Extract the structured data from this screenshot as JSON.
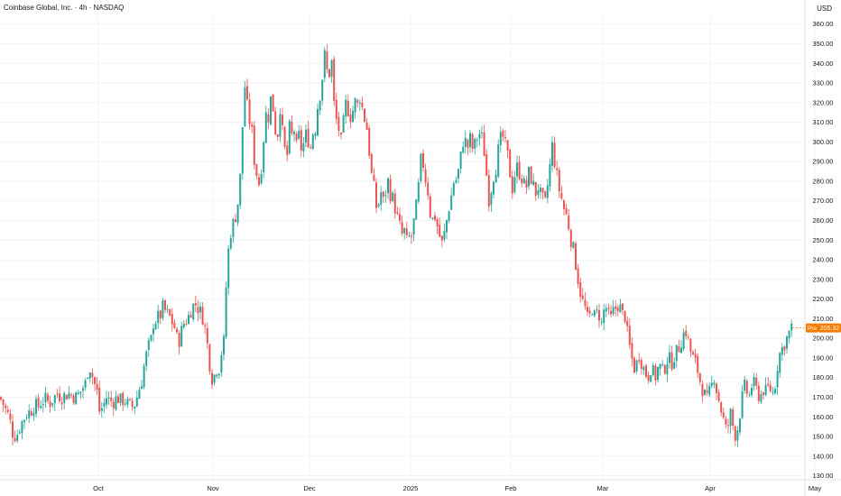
{
  "title": "Coinbase Global, Inc. · 4h · NASDAQ",
  "currency": "USD",
  "price_tag": {
    "label": "Pre",
    "value": "205.32"
  },
  "colors": {
    "up": "#26a69a",
    "down": "#ef5350",
    "grid": "#f0f3fa",
    "price_tag": "#f57c00"
  },
  "chart_data": {
    "type": "candlestick",
    "y_unit": "USD",
    "ylim": [
      128,
      364
    ],
    "y_ticks": [
      "130.00",
      "140.00",
      "150.00",
      "160.00",
      "170.00",
      "180.00",
      "190.00",
      "200.00",
      "210.00",
      "220.00",
      "230.00",
      "240.00",
      "250.00",
      "260.00",
      "270.00",
      "280.00",
      "290.00",
      "300.00",
      "310.00",
      "320.00",
      "330.00",
      "340.00",
      "350.00",
      "360.00"
    ],
    "x_ticks": [
      "Oct",
      "Nov",
      "Dec",
      "2025",
      "Feb",
      "Mar",
      "Apr",
      "May"
    ],
    "grid": true,
    "close_path": [
      [
        0,
        170
      ],
      [
        2,
        168
      ],
      [
        5,
        165
      ],
      [
        10,
        160
      ],
      [
        14,
        152
      ],
      [
        18,
        150
      ],
      [
        22,
        155
      ],
      [
        25,
        158
      ],
      [
        30,
        162
      ],
      [
        34,
        163
      ],
      [
        38,
        166
      ],
      [
        42,
        165
      ],
      [
        46,
        168
      ],
      [
        50,
        169
      ],
      [
        55,
        167
      ],
      [
        60,
        170
      ],
      [
        64,
        172
      ],
      [
        68,
        170
      ],
      [
        72,
        171
      ],
      [
        76,
        172
      ],
      [
        80,
        171
      ],
      [
        84,
        170
      ],
      [
        88,
        172
      ],
      [
        92,
        175
      ],
      [
        96,
        178
      ],
      [
        98,
        187
      ],
      [
        100,
        185
      ],
      [
        104,
        178
      ],
      [
        108,
        172
      ],
      [
        110,
        163
      ],
      [
        114,
        165
      ],
      [
        118,
        170
      ],
      [
        122,
        168
      ],
      [
        126,
        168
      ],
      [
        130,
        170
      ],
      [
        134,
        168
      ],
      [
        138,
        169
      ],
      [
        142,
        166
      ],
      [
        146,
        165
      ],
      [
        150,
        167
      ],
      [
        154,
        174
      ],
      [
        158,
        180
      ],
      [
        160,
        187
      ],
      [
        164,
        195
      ],
      [
        168,
        200
      ],
      [
        170,
        208
      ],
      [
        174,
        210
      ],
      [
        178,
        212
      ],
      [
        182,
        218
      ],
      [
        184,
        210
      ],
      [
        186,
        213
      ],
      [
        190,
        209
      ],
      [
        194,
        205
      ],
      [
        196,
        200
      ],
      [
        198,
        198
      ],
      [
        200,
        202
      ],
      [
        204,
        208
      ],
      [
        208,
        210
      ],
      [
        212,
        215
      ],
      [
        216,
        218
      ],
      [
        220,
        215
      ],
      [
        224,
        212
      ],
      [
        226,
        208
      ],
      [
        228,
        203
      ],
      [
        230,
        196
      ],
      [
        232,
        188
      ],
      [
        234,
        182
      ],
      [
        236,
        178
      ],
      [
        238,
        182
      ],
      [
        240,
        185
      ],
      [
        242,
        183
      ],
      [
        244,
        188
      ],
      [
        246,
        195
      ],
      [
        248,
        198
      ],
      [
        250,
        220
      ],
      [
        252,
        240
      ],
      [
        254,
        248
      ],
      [
        256,
        255
      ],
      [
        258,
        258
      ],
      [
        260,
        260
      ],
      [
        262,
        265
      ],
      [
        264,
        270
      ],
      [
        266,
        280
      ],
      [
        268,
        300
      ],
      [
        270,
        320
      ],
      [
        272,
        332
      ],
      [
        274,
        318
      ],
      [
        276,
        310
      ],
      [
        278,
        312
      ],
      [
        280,
        300
      ],
      [
        282,
        290
      ],
      [
        284,
        285
      ],
      [
        286,
        280
      ],
      [
        288,
        278
      ],
      [
        290,
        290
      ],
      [
        292,
        300
      ],
      [
        294,
        318
      ],
      [
        296,
        308
      ],
      [
        298,
        315
      ],
      [
        300,
        322
      ],
      [
        302,
        318
      ],
      [
        304,
        315
      ],
      [
        306,
        300
      ],
      [
        308,
        305
      ],
      [
        310,
        320
      ],
      [
        312,
        310
      ],
      [
        314,
        300
      ],
      [
        316,
        295
      ],
      [
        318,
        292
      ],
      [
        320,
        305
      ],
      [
        322,
        310
      ],
      [
        324,
        300
      ],
      [
        326,
        306
      ],
      [
        328,
        296
      ],
      [
        330,
        300
      ],
      [
        332,
        305
      ],
      [
        334,
        296
      ],
      [
        336,
        298
      ],
      [
        338,
        302
      ],
      [
        340,
        305
      ],
      [
        342,
        300
      ],
      [
        344,
        296
      ],
      [
        346,
        308
      ],
      [
        348,
        300
      ],
      [
        350,
        310
      ],
      [
        352,
        318
      ],
      [
        354,
        322
      ],
      [
        356,
        330
      ],
      [
        358,
        335
      ],
      [
        360,
        345
      ],
      [
        362,
        338
      ],
      [
        364,
        328
      ],
      [
        366,
        342
      ],
      [
        368,
        340
      ],
      [
        370,
        320
      ],
      [
        372,
        312
      ],
      [
        374,
        310
      ],
      [
        376,
        305
      ],
      [
        378,
        300
      ],
      [
        380,
        306
      ],
      [
        382,
        318
      ],
      [
        384,
        320
      ],
      [
        386,
        316
      ],
      [
        388,
        312
      ],
      [
        390,
        318
      ],
      [
        392,
        314
      ],
      [
        394,
        322
      ],
      [
        396,
        318
      ],
      [
        398,
        325
      ],
      [
        400,
        320
      ],
      [
        402,
        316
      ],
      [
        404,
        312
      ],
      [
        406,
        310
      ],
      [
        408,
        300
      ],
      [
        410,
        292
      ],
      [
        412,
        282
      ],
      [
        414,
        278
      ],
      [
        416,
        270
      ],
      [
        418,
        264
      ],
      [
        420,
        270
      ],
      [
        422,
        275
      ],
      [
        424,
        268
      ],
      [
        426,
        272
      ],
      [
        428,
        276
      ],
      [
        430,
        280
      ],
      [
        432,
        275
      ],
      [
        434,
        270
      ],
      [
        436,
        272
      ],
      [
        438,
        266
      ],
      [
        440,
        262
      ],
      [
        442,
        258
      ],
      [
        444,
        256
      ],
      [
        446,
        252
      ],
      [
        448,
        255
      ],
      [
        450,
        250
      ],
      [
        452,
        248
      ],
      [
        454,
        253
      ],
      [
        456,
        252
      ],
      [
        458,
        258
      ],
      [
        460,
        262
      ],
      [
        462,
        270
      ],
      [
        464,
        278
      ],
      [
        466,
        290
      ],
      [
        468,
        292
      ],
      [
        470,
        285
      ],
      [
        472,
        280
      ],
      [
        474,
        276
      ],
      [
        476,
        265
      ],
      [
        478,
        262
      ],
      [
        480,
        260
      ],
      [
        482,
        262
      ],
      [
        484,
        258
      ],
      [
        486,
        255
      ],
      [
        488,
        250
      ],
      [
        490,
        248
      ],
      [
        492,
        252
      ],
      [
        494,
        258
      ],
      [
        496,
        262
      ],
      [
        498,
        268
      ],
      [
        500,
        272
      ],
      [
        502,
        278
      ],
      [
        504,
        282
      ],
      [
        506,
        280
      ],
      [
        508,
        285
      ],
      [
        510,
        290
      ],
      [
        512,
        298
      ],
      [
        514,
        302
      ],
      [
        516,
        300
      ],
      [
        518,
        296
      ],
      [
        520,
        303
      ],
      [
        522,
        300
      ],
      [
        524,
        296
      ],
      [
        526,
        298
      ],
      [
        528,
        304
      ],
      [
        530,
        300
      ],
      [
        532,
        306
      ],
      [
        534,
        302
      ],
      [
        536,
        298
      ],
      [
        538,
        288
      ],
      [
        540,
        280
      ],
      [
        542,
        270
      ],
      [
        544,
        275
      ],
      [
        546,
        282
      ],
      [
        548,
        284
      ],
      [
        550,
        288
      ],
      [
        552,
        295
      ],
      [
        554,
        300
      ],
      [
        556,
        303
      ],
      [
        558,
        302
      ],
      [
        560,
        298
      ],
      [
        562,
        294
      ],
      [
        564,
        290
      ],
      [
        566,
        280
      ],
      [
        568,
        276
      ],
      [
        570,
        282
      ],
      [
        572,
        288
      ],
      [
        574,
        286
      ],
      [
        576,
        284
      ],
      [
        578,
        282
      ],
      [
        580,
        280
      ],
      [
        582,
        276
      ],
      [
        584,
        278
      ],
      [
        586,
        284
      ],
      [
        588,
        282
      ],
      [
        590,
        280
      ],
      [
        592,
        276
      ],
      [
        594,
        274
      ],
      [
        596,
        278
      ],
      [
        598,
        274
      ],
      [
        600,
        272
      ],
      [
        602,
        270
      ],
      [
        604,
        268
      ],
      [
        606,
        275
      ],
      [
        608,
        282
      ],
      [
        610,
        290
      ],
      [
        612,
        298
      ],
      [
        614,
        292
      ],
      [
        616,
        286
      ],
      [
        618,
        280
      ],
      [
        620,
        275
      ],
      [
        622,
        272
      ],
      [
        624,
        268
      ],
      [
        626,
        264
      ],
      [
        628,
        262
      ],
      [
        630,
        258
      ],
      [
        632,
        252
      ],
      [
        634,
        248
      ],
      [
        636,
        244
      ],
      [
        638,
        238
      ],
      [
        640,
        232
      ],
      [
        642,
        226
      ],
      [
        644,
        222
      ],
      [
        646,
        218
      ],
      [
        648,
        216
      ],
      [
        650,
        212
      ],
      [
        652,
        208
      ],
      [
        654,
        212
      ],
      [
        656,
        216
      ],
      [
        658,
        212
      ],
      [
        660,
        210
      ],
      [
        662,
        214
      ],
      [
        664,
        212
      ],
      [
        666,
        208
      ],
      [
        668,
        205
      ],
      [
        670,
        220
      ],
      [
        672,
        215
      ],
      [
        674,
        212
      ],
      [
        676,
        208
      ],
      [
        678,
        212
      ],
      [
        680,
        214
      ],
      [
        682,
        215
      ],
      [
        684,
        218
      ],
      [
        686,
        216
      ],
      [
        688,
        215
      ],
      [
        690,
        212
      ],
      [
        692,
        214
      ],
      [
        694,
        206
      ],
      [
        696,
        200
      ],
      [
        698,
        195
      ],
      [
        700,
        190
      ],
      [
        702,
        186
      ],
      [
        704,
        184
      ],
      [
        706,
        188
      ],
      [
        708,
        192
      ],
      [
        710,
        190
      ],
      [
        712,
        186
      ],
      [
        714,
        184
      ],
      [
        716,
        182
      ],
      [
        718,
        180
      ],
      [
        720,
        184
      ],
      [
        722,
        186
      ],
      [
        724,
        182
      ],
      [
        726,
        180
      ],
      [
        728,
        183
      ],
      [
        730,
        186
      ],
      [
        732,
        185
      ],
      [
        734,
        183
      ],
      [
        736,
        184
      ],
      [
        738,
        188
      ],
      [
        740,
        190
      ],
      [
        742,
        189
      ],
      [
        744,
        187
      ],
      [
        746,
        190
      ],
      [
        748,
        192
      ],
      [
        750,
        193
      ],
      [
        752,
        195
      ],
      [
        754,
        198
      ],
      [
        756,
        200
      ],
      [
        758,
        203
      ],
      [
        760,
        204
      ],
      [
        762,
        200
      ],
      [
        764,
        196
      ],
      [
        766,
        192
      ],
      [
        768,
        190
      ],
      [
        770,
        188
      ],
      [
        772,
        186
      ],
      [
        774,
        182
      ],
      [
        776,
        178
      ],
      [
        778,
        175
      ],
      [
        780,
        172
      ],
      [
        782,
        170
      ],
      [
        784,
        168
      ],
      [
        786,
        172
      ],
      [
        788,
        175
      ],
      [
        790,
        178
      ],
      [
        792,
        182
      ],
      [
        794,
        174
      ],
      [
        796,
        170
      ],
      [
        798,
        166
      ],
      [
        800,
        162
      ],
      [
        802,
        158
      ],
      [
        804,
        154
      ],
      [
        806,
        152
      ],
      [
        808,
        160
      ],
      [
        810,
        162
      ],
      [
        812,
        156
      ],
      [
        814,
        152
      ],
      [
        816,
        150
      ],
      [
        818,
        156
      ],
      [
        820,
        162
      ],
      [
        822,
        168
      ],
      [
        824,
        174
      ],
      [
        826,
        176
      ],
      [
        828,
        172
      ],
      [
        830,
        170
      ],
      [
        832,
        174
      ],
      [
        834,
        178
      ],
      [
        836,
        176
      ],
      [
        838,
        174
      ],
      [
        840,
        172
      ],
      [
        842,
        170
      ],
      [
        844,
        172
      ],
      [
        846,
        174
      ],
      [
        848,
        172
      ],
      [
        850,
        174
      ],
      [
        852,
        175
      ],
      [
        854,
        174
      ],
      [
        856,
        172
      ],
      [
        858,
        174
      ],
      [
        860,
        180
      ],
      [
        862,
        188
      ],
      [
        864,
        192
      ],
      [
        866,
        194
      ],
      [
        868,
        196
      ],
      [
        870,
        198
      ],
      [
        872,
        200
      ],
      [
        874,
        202
      ],
      [
        876,
        204
      ],
      [
        878,
        205.32
      ]
    ]
  }
}
